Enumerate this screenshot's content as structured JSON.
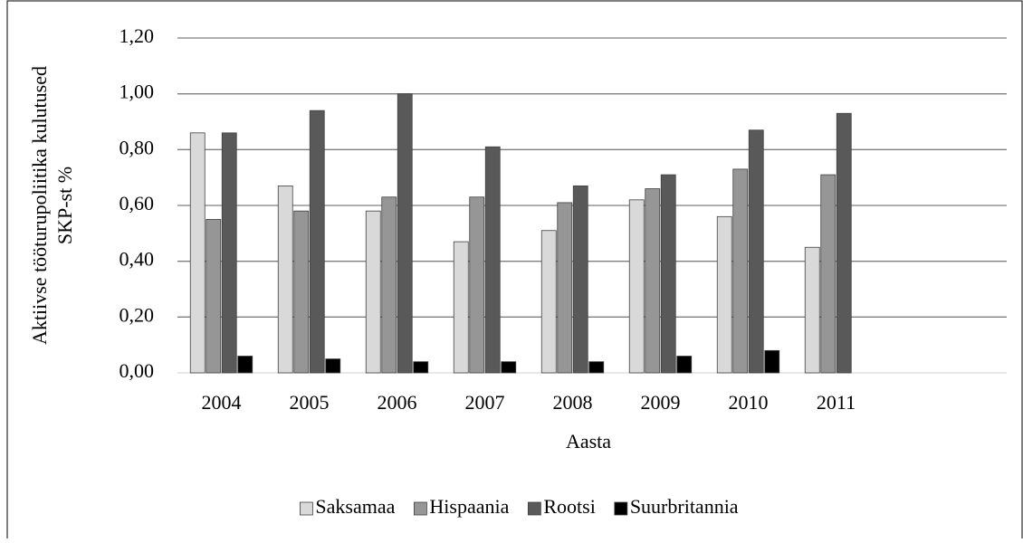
{
  "chart_data": {
    "type": "bar",
    "ylabel": [
      "Aktiivse tööturupoliitika kulutused",
      "SKP-st %"
    ],
    "xlabel": "Aasta",
    "categories": [
      "2004",
      "2005",
      "2006",
      "2007",
      "2008",
      "2009",
      "2010",
      "2011",
      null
    ],
    "series": [
      {
        "name": "Saksamaa",
        "color": "#d9d9d9",
        "values": [
          0.86,
          0.67,
          0.58,
          0.47,
          0.51,
          0.62,
          0.56,
          0.45,
          null
        ]
      },
      {
        "name": "Hispaania",
        "color": "#969696",
        "values": [
          0.55,
          0.58,
          0.63,
          0.63,
          0.61,
          0.66,
          0.73,
          0.71,
          null
        ]
      },
      {
        "name": "Rootsi",
        "color": "#595959",
        "values": [
          0.86,
          0.94,
          1.0,
          0.81,
          0.67,
          0.71,
          0.87,
          0.93,
          null
        ]
      },
      {
        "name": "Suurbritannia",
        "color": "#000000",
        "values": [
          0.06,
          0.05,
          0.04,
          0.04,
          0.04,
          0.06,
          0.08,
          null,
          null
        ]
      }
    ],
    "ylim": [
      0,
      1.2
    ],
    "yticks": [
      {
        "value": 0,
        "label": "0,00"
      },
      {
        "value": 0.2,
        "label": "0,20"
      },
      {
        "value": 0.4,
        "label": "0,40"
      },
      {
        "value": 0.6,
        "label": "0,60"
      },
      {
        "value": 0.8,
        "label": "0,80"
      },
      {
        "value": 1.0,
        "label": "1,00"
      },
      {
        "value": 1.2,
        "label": "1,20"
      }
    ],
    "grid": true,
    "legend": "bottom"
  }
}
